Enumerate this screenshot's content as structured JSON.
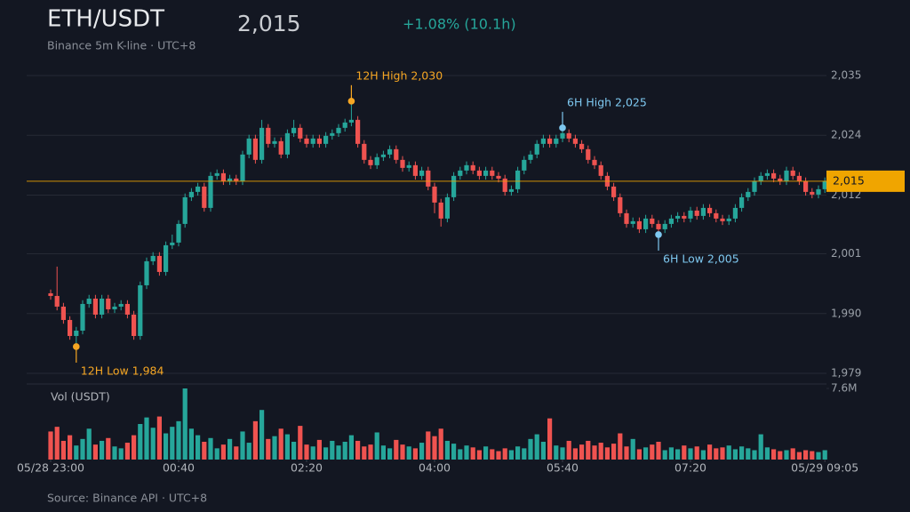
{
  "chart_data": {
    "type": "candlestick",
    "title": "ETH/USDT",
    "subtitle": "Binance 5m K-line · UTC+8",
    "price": "2,015",
    "change": "+1.08% (10.1h)",
    "source": "Source: Binance API · UTC+8",
    "up_color": "#26a69a",
    "down_color": "#ef5350",
    "grid": true,
    "categories": [
      "05/28 23:00",
      null,
      null,
      null,
      null,
      null,
      null,
      null,
      null,
      null,
      null,
      null,
      null,
      null,
      null,
      null,
      null,
      null,
      null,
      null,
      "00:40",
      null,
      null,
      null,
      null,
      null,
      null,
      null,
      null,
      null,
      null,
      null,
      null,
      null,
      null,
      null,
      null,
      null,
      null,
      null,
      "02:20",
      null,
      null,
      null,
      null,
      null,
      null,
      null,
      null,
      null,
      null,
      null,
      null,
      null,
      null,
      null,
      null,
      null,
      null,
      null,
      "04:00",
      null,
      null,
      null,
      null,
      null,
      null,
      null,
      null,
      null,
      null,
      null,
      null,
      null,
      null,
      null,
      null,
      null,
      null,
      null,
      "05:40",
      null,
      null,
      null,
      null,
      null,
      null,
      null,
      null,
      null,
      null,
      null,
      null,
      null,
      null,
      null,
      null,
      null,
      null,
      null,
      "07:20",
      null,
      null,
      null,
      null,
      null,
      null,
      null,
      null,
      null,
      null,
      null,
      null,
      null,
      null,
      null,
      null,
      null,
      null,
      null,
      null,
      "05/29 09:05"
    ],
    "open": [
      1994,
      1993.5,
      1991.5,
      1989,
      1986,
      1987,
      1992,
      1993,
      1990,
      1993,
      1991,
      1991.5,
      1992,
      1990,
      1986,
      1995.5,
      2000,
      2001,
      1998,
      2003,
      2003.5,
      2007,
      2012,
      2013,
      2014,
      2010,
      2016,
      2016.5,
      2015,
      2015.5,
      2015,
      2020,
      2023,
      2019,
      2025,
      2022,
      2022.5,
      2020,
      2024,
      2025,
      2023,
      2022,
      2023,
      2022,
      2023.5,
      2024,
      2025,
      2026,
      2026.5,
      2022,
      2019,
      2018,
      2019.5,
      2020,
      2021,
      2019,
      2017.5,
      2018,
      2016,
      2017,
      2014,
      2011,
      2008,
      2012,
      2016,
      2017,
      2018,
      2017,
      2016,
      2017,
      2016,
      2015.5,
      2013,
      2013.5,
      2017,
      2019,
      2020,
      2022,
      2023,
      2022,
      2023,
      2024,
      2023,
      2022,
      2021,
      2019,
      2018,
      2016,
      2014,
      2012,
      2009,
      2007,
      2007.5,
      2006,
      2008,
      2007,
      2006,
      2007,
      2008,
      2008.5,
      2008,
      2009.5,
      2008.5,
      2010,
      2009,
      2008,
      2007.5,
      2008,
      2010,
      2012,
      2013,
      2015,
      2016,
      2016.5,
      2015.5,
      2015,
      2017,
      2016,
      2015,
      2013,
      2012.5,
      2013.5
    ],
    "high": [
      1994.7,
      1999,
      1992.2,
      1989.7,
      1987.7,
      1992.7,
      1993.7,
      1993.7,
      1993.7,
      1993.7,
      1992.2,
      1992.7,
      1992.7,
      1990.7,
      1996.2,
      2000.7,
      2001.7,
      2001.7,
      2003.7,
      2005,
      2007.7,
      2012.7,
      2013.7,
      2014.7,
      2014.7,
      2016.7,
      2017.2,
      2017.2,
      2016.2,
      2016.2,
      2020.7,
      2023.7,
      2023.7,
      2026.5,
      2025.7,
      2023.2,
      2023.2,
      2024.7,
      2026.5,
      2025.7,
      2023.7,
      2023.7,
      2023.7,
      2024.2,
      2024.7,
      2025.7,
      2026.7,
      2030,
      2027.2,
      2022.7,
      2019.7,
      2020.2,
      2020.7,
      2021.7,
      2021.7,
      2019.7,
      2018.7,
      2018.7,
      2017.7,
      2017.7,
      2014.7,
      2011.7,
      2012.7,
      2016.7,
      2017.7,
      2018.7,
      2018.7,
      2017.7,
      2017.7,
      2017.7,
      2016.7,
      2016.2,
      2014.2,
      2017.7,
      2019.7,
      2020.7,
      2022.7,
      2023.7,
      2023.7,
      2023.7,
      2025,
      2024.7,
      2023.7,
      2022.7,
      2021.7,
      2019.7,
      2018.7,
      2016.7,
      2014.7,
      2012.7,
      2009.7,
      2008.2,
      2008.2,
      2008.7,
      2008.7,
      2007.7,
      2007.7,
      2008.7,
      2009.2,
      2009.2,
      2010.2,
      2010.2,
      2010.7,
      2010.7,
      2009.7,
      2008.7,
      2008.7,
      2010.7,
      2012.7,
      2013.7,
      2015.7,
      2016.7,
      2017.2,
      2017.2,
      2016.2,
      2017.7,
      2017.7,
      2016.7,
      2015.7,
      2013.7,
      2014.2,
      2015.7
    ],
    "low": [
      1992.8,
      1990.8,
      1988.3,
      1985.3,
      1984,
      1986.3,
      1991.3,
      1989.3,
      1989.3,
      1990.3,
      1990.3,
      1990.8,
      1989.3,
      1985.3,
      1985.3,
      1994.8,
      1999.3,
      1997.3,
      1997.3,
      2002.3,
      2002.8,
      2006.3,
      2011.3,
      2012.3,
      2009.3,
      2009.3,
      2015.3,
      2014.3,
      2014.3,
      2014.3,
      2014.3,
      2019.3,
      2018.3,
      2018.3,
      2021.3,
      2021.3,
      2019.3,
      2019.3,
      2023.3,
      2022.3,
      2021.3,
      2021.3,
      2021.3,
      2021.3,
      2022.8,
      2023.3,
      2024.3,
      2025.3,
      2021.3,
      2018.3,
      2017.3,
      2017.3,
      2018.8,
      2019.3,
      2018.3,
      2016.8,
      2016.8,
      2015.3,
      2015.3,
      2013.3,
      2009,
      2006.5,
      2007.3,
      2011.3,
      2015.3,
      2016.3,
      2016.3,
      2015.3,
      2015.3,
      2015.3,
      2014.8,
      2012.3,
      2012.3,
      2012.8,
      2016.3,
      2018.3,
      2019.3,
      2021.3,
      2021.3,
      2021.3,
      2022.3,
      2022.3,
      2021.3,
      2020.3,
      2018.3,
      2017.3,
      2015.3,
      2013.3,
      2011.3,
      2008.3,
      2006.3,
      2006.3,
      2005.3,
      2005.3,
      2006.3,
      2005,
      2005.3,
      2006.3,
      2007.3,
      2007.3,
      2007.3,
      2007.8,
      2007.8,
      2008.3,
      2007.3,
      2006.8,
      2006.8,
      2007.3,
      2009.3,
      2011.3,
      2012.3,
      2014.3,
      2015.3,
      2014.8,
      2014.3,
      2014.3,
      2015.3,
      2014.3,
      2012.3,
      2011.8,
      2011.8,
      2012.8
    ],
    "close": [
      1993.5,
      1991.5,
      1989,
      1986,
      1987,
      1992,
      1993,
      1990,
      1993,
      1991,
      1991.5,
      1992,
      1990,
      1986,
      1995.5,
      2000,
      2001,
      1998,
      2003,
      2003.5,
      2007,
      2012,
      2013,
      2014,
      2010,
      2016,
      2016.5,
      2015,
      2015.5,
      2015,
      2020,
      2023,
      2019,
      2025,
      2022,
      2022.5,
      2020,
      2024,
      2025,
      2023,
      2022,
      2023,
      2022,
      2023.5,
      2024,
      2025,
      2026,
      2026.5,
      2022,
      2019,
      2018,
      2019.5,
      2020,
      2021,
      2019,
      2017.5,
      2018,
      2016,
      2017,
      2014,
      2011,
      2008,
      2012,
      2016,
      2017,
      2018,
      2017,
      2016,
      2017,
      2016,
      2015.5,
      2013,
      2013.5,
      2017,
      2019,
      2020,
      2022,
      2023,
      2022,
      2023,
      2024,
      2023,
      2022,
      2021,
      2019,
      2018,
      2016,
      2014,
      2012,
      2009,
      2007,
      2007.5,
      2006,
      2008,
      2007,
      2006,
      2007,
      2008,
      2008.5,
      2008,
      2009.5,
      2008.5,
      2010,
      2009,
      2008,
      2007.5,
      2008,
      2010,
      2012,
      2013,
      2015,
      2016,
      2016.5,
      2015.5,
      2015,
      2017,
      2016,
      2015,
      2013,
      2012.5,
      2013.5,
      2015
    ],
    "ylim": [
      1979,
      2034.8
    ],
    "yticks": [
      {
        "value": 2034.8,
        "label": "2,035"
      },
      {
        "value": 2023.6,
        "label": "2,024"
      },
      {
        "value": 2012.4,
        "label": "2,012"
      },
      {
        "value": 2001.4,
        "label": "2,001"
      },
      {
        "value": 1990.2,
        "label": "1,990"
      },
      {
        "value": 1979,
        "label": "1,979"
      }
    ],
    "last": {
      "value": 2015,
      "label": "2,015",
      "color": "#f0a500"
    },
    "annotations": [
      {
        "label": "12H High 2,030",
        "value": 2030,
        "index": 47,
        "color": "#f5a623"
      },
      {
        "label": "12H Low 1,984",
        "value": 1984,
        "index": 4,
        "color": "#f5a623"
      },
      {
        "label": "6H High 2,025",
        "value": 2025,
        "index": 80,
        "color": "#7ec8f0"
      },
      {
        "label": "6H Low 2,005",
        "value": 2005,
        "index": 95,
        "color": "#7ec8f0"
      }
    ],
    "volume_label": "Vol (USDT)",
    "volume": [
      3.0,
      3.5,
      2.0,
      2.6,
      1.5,
      2.2,
      3.3,
      1.6,
      2.0,
      2.3,
      1.4,
      1.2,
      1.8,
      2.6,
      3.8,
      4.5,
      3.4,
      4.6,
      2.8,
      3.5,
      4.1,
      7.6,
      3.3,
      2.6,
      1.9,
      2.3,
      1.2,
      1.6,
      2.2,
      1.4,
      3.0,
      1.8,
      4.1,
      5.3,
      2.2,
      2.5,
      3.3,
      2.7,
      1.9,
      3.6,
      1.6,
      1.4,
      2.1,
      1.3,
      2.0,
      1.5,
      1.9,
      2.6,
      2.0,
      1.4,
      1.6,
      2.9,
      1.5,
      1.2,
      2.1,
      1.6,
      1.4,
      1.2,
      1.8,
      3.0,
      2.5,
      3.3,
      2.0,
      1.7,
      1.1,
      1.5,
      1.3,
      1.0,
      1.4,
      1.1,
      0.9,
      1.2,
      1.0,
      1.4,
      1.2,
      2.2,
      2.7,
      1.9,
      4.4,
      1.5,
      1.3,
      2.0,
      1.2,
      1.6,
      2.0,
      1.5,
      1.8,
      1.3,
      1.7,
      2.8,
      1.4,
      2.2,
      1.1,
      1.3,
      1.6,
      1.9,
      1.0,
      1.3,
      1.1,
      1.5,
      1.2,
      1.4,
      1.0,
      1.6,
      1.2,
      1.3,
      1.5,
      1.1,
      1.4,
      1.2,
      1.0,
      2.7,
      1.3,
      1.1,
      0.9,
      1.0,
      1.2,
      0.8,
      1.0,
      0.9,
      0.8,
      1.0
    ],
    "volume_lim": [
      0,
      7.6
    ],
    "volume_ticks": [
      {
        "value": 7.6,
        "label": "7.6M"
      }
    ]
  }
}
